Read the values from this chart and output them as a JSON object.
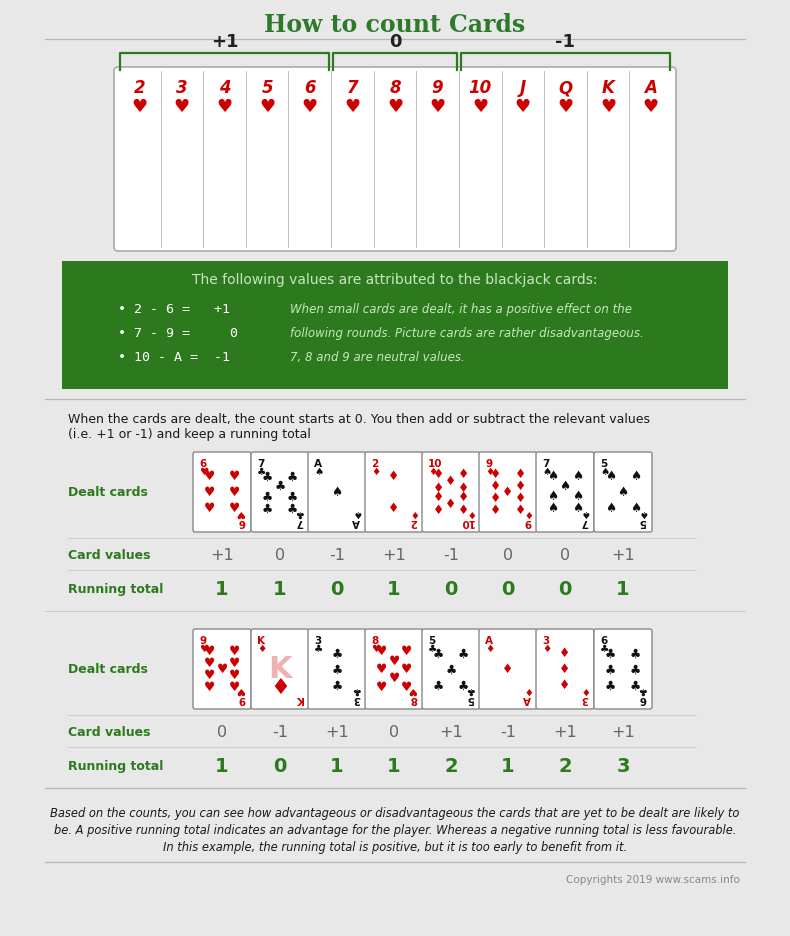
{
  "title": "How to count Cards",
  "title_color": "#2d7a2d",
  "bg_color": "#e8e8e8",
  "card_labels": [
    "2",
    "3",
    "4",
    "5",
    "6",
    "7",
    "8",
    "9",
    "10",
    "J",
    "Q",
    "K",
    "A"
  ],
  "green_bg": "#2d7a1e",
  "green_text_color": "#c8e6c0",
  "green_box_title": "The following values are attributed to the blackjack cards:",
  "bullet_line1": "• 2 - 6 =   +1",
  "bullet_line2": "• 7 - 9 =     0",
  "bullet_line3": "• 10 - A =  -1",
  "side_text_line1": "When small cards are dealt, it has a positive effect on the",
  "side_text_line2": "following rounds. Picture cards are rather disadvantageous.",
  "side_text_line3": "7, 8 and 9 are neutral values.",
  "count_intro_1": "When the cards are dealt, the count starts at 0. You then add or subtract the relevant values",
  "count_intro_2": "(i.e. +1 or -1) and keep a running total",
  "dealt_label": "Dealt cards",
  "card_values_label": "Card values",
  "running_total_label": "Running total",
  "row1_card_values": [
    "+1",
    "0",
    "-1",
    "+1",
    "-1",
    "0",
    "0",
    "+1"
  ],
  "row1_running_totals": [
    "1",
    "1",
    "0",
    "1",
    "0",
    "0",
    "0",
    "1"
  ],
  "row2_card_values": [
    "0",
    "-1",
    "+1",
    "0",
    "+1",
    "-1",
    "+1",
    "+1"
  ],
  "row2_running_totals": [
    "1",
    "0",
    "1",
    "1",
    "2",
    "1",
    "2",
    "3"
  ],
  "footer_line1": "Based on the counts, you can see how advantageous or disadvantageous the cards that are yet to be dealt are likely to",
  "footer_line2": "be. A positive running total indicates an advantage for the player. Whereas a negative running total is less favourable.",
  "footer_line3": "In this example, the running total is positive, but it is too early to benefit from it.",
  "copyright": "Copyrights 2019 www.scams.info",
  "label_color": "#2d7a1e",
  "value_color": "#666666",
  "total_color": "#2d7a1e",
  "red_card": "#cc0000",
  "black_card": "#111111"
}
